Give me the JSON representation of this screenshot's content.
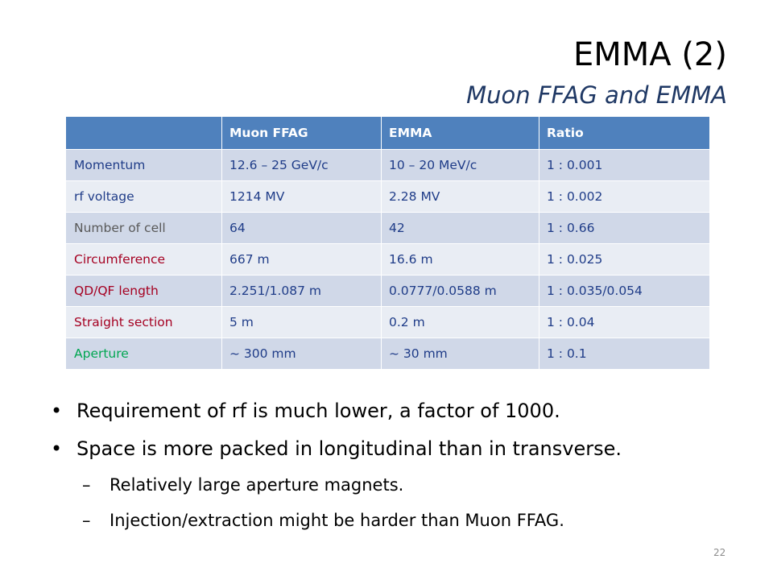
{
  "slide": {
    "title": "EMMA (2)",
    "subtitle": "Muon FFAG and EMMA",
    "page_number": "22"
  },
  "table": {
    "headers": [
      "",
      "Muon FFAG",
      "EMMA",
      "Ratio"
    ],
    "rows": [
      {
        "label": "Momentum",
        "label_color": "#1f3c88",
        "muon": "12.6 – 25 GeV/c",
        "emma": "10 – 20 MeV/c",
        "ratio": "1 : 0.001"
      },
      {
        "label": "rf voltage",
        "label_color": "#1f3c88",
        "muon": "1214 MV",
        "emma": "2.28 MV",
        "ratio": "1 : 0.002"
      },
      {
        "label": "Number of cell",
        "label_color": "#595959",
        "muon": "64",
        "emma": "42",
        "ratio": "1 : 0.66"
      },
      {
        "label": "Circumference",
        "label_color": "#a50021",
        "muon": "667 m",
        "emma": "16.6 m",
        "ratio": "1 : 0.025"
      },
      {
        "label": "QD/QF length",
        "label_color": "#a50021",
        "muon": "2.251/1.087 m",
        "emma": "0.0777/0.0588 m",
        "ratio": "1 : 0.035/0.054"
      },
      {
        "label": "Straight section",
        "label_color": "#a50021",
        "muon": "5 m",
        "emma": "0.2 m",
        "ratio": "1 : 0.04"
      },
      {
        "label": "Aperture",
        "label_color": "#00a651",
        "muon": "~ 300 mm",
        "emma": "~ 30 mm",
        "ratio": "1 : 0.1"
      }
    ],
    "colors": {
      "header_bg": "#4f81bd",
      "row_odd_bg": "#d0d8e8",
      "row_even_bg": "#e9edf4",
      "cell_text": "#1f3c88"
    }
  },
  "bullets": [
    {
      "level": 1,
      "text": "Requirement of rf is much lower, a factor of 1000."
    },
    {
      "level": 1,
      "text": "Space is more packed in longitudinal than in transverse."
    },
    {
      "level": 2,
      "text": "Relatively large aperture magnets."
    },
    {
      "level": 2,
      "text": "Injection/extraction might be harder than Muon FFAG."
    }
  ]
}
